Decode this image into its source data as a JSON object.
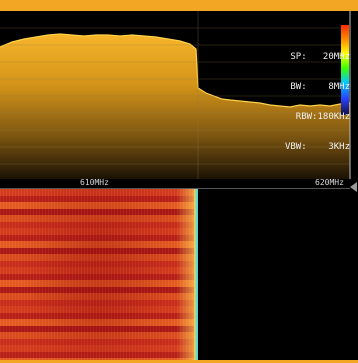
{
  "analyzer": {
    "parameters": [
      {
        "label": "SP:",
        "value": "20MHz"
      },
      {
        "label": "BW:",
        "value": "8MHz"
      },
      {
        "label": "RBW:",
        "value": "180KHz"
      },
      {
        "label": "VBW:",
        "value": "3KHz"
      }
    ],
    "frequency_axis": {
      "center_label": "610MHz",
      "right_label": "620MHz"
    },
    "colors": {
      "accent": "#f2a623",
      "trace_fill": "#d8a219",
      "grid": "#8b7a47",
      "waterfall_hot": "#d33b1f"
    }
  }
}
